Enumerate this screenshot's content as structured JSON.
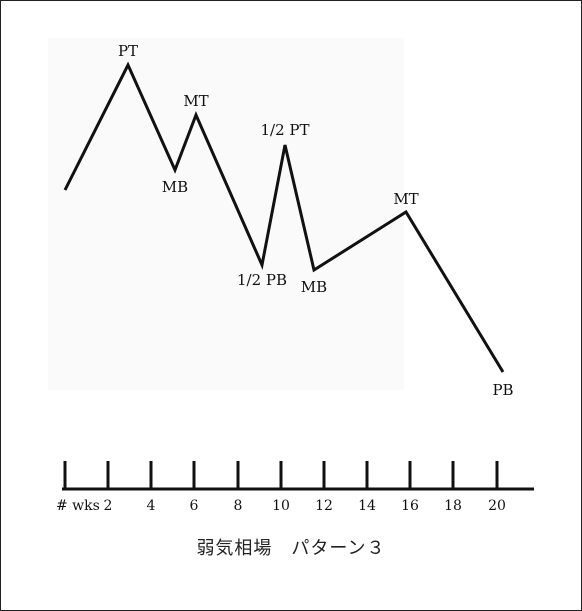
{
  "diagram": {
    "points": [
      {
        "label": ""
      },
      {
        "label": "PT"
      },
      {
        "label": "MB"
      },
      {
        "label": "MT"
      },
      {
        "label": "1/2 PB"
      },
      {
        "label": "1/2 PT"
      },
      {
        "label": "MB"
      },
      {
        "label": "MT"
      },
      {
        "label": "PB"
      }
    ],
    "axis": {
      "unit_label": "# wks",
      "ticks": [
        "2",
        "4",
        "6",
        "8",
        "10",
        "12",
        "14",
        "16",
        "18",
        "20"
      ]
    }
  },
  "caption": "弱気相場　パターン３",
  "colors": {
    "line": "#111111",
    "frame": "#222222"
  }
}
